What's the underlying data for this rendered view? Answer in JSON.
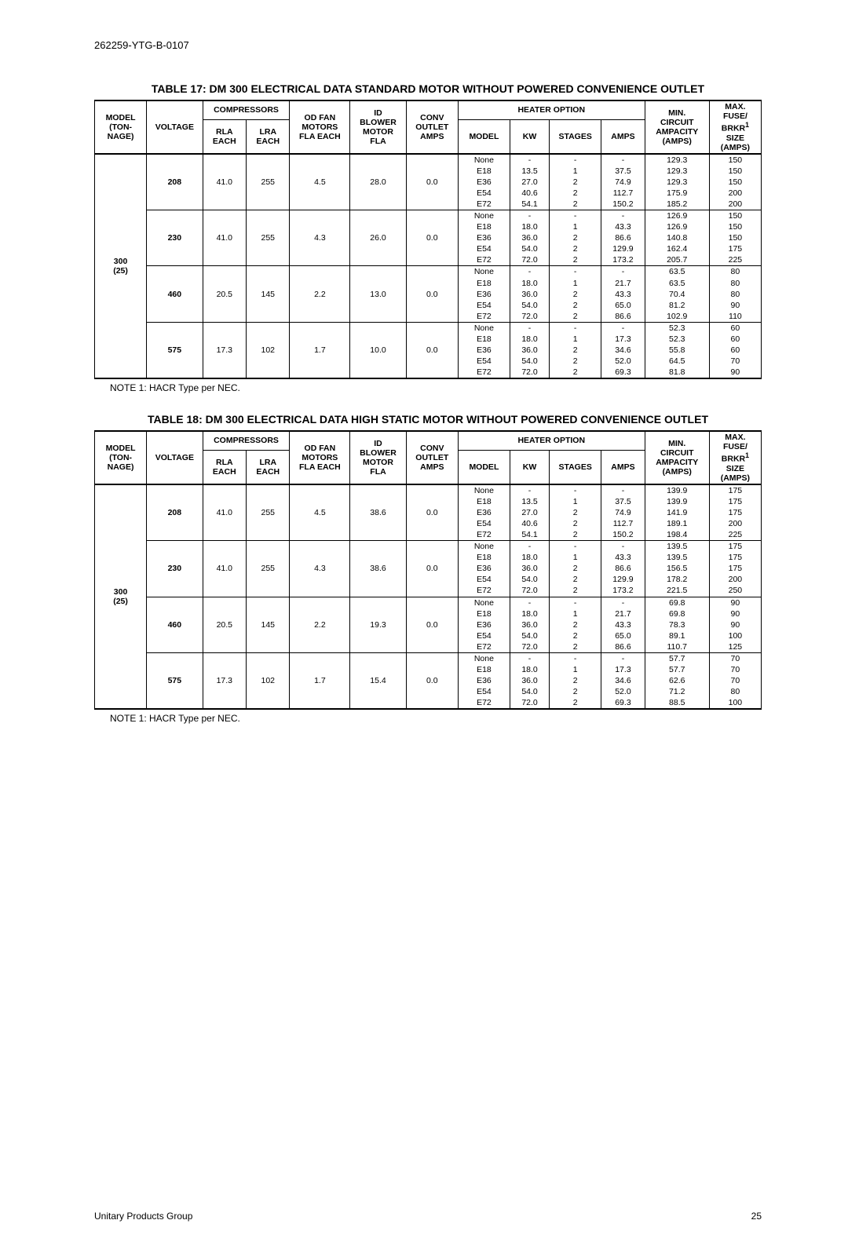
{
  "docId": "262259-YTG-B-0107",
  "footerLeft": "Unitary Products Group",
  "footerRight": "25",
  "note": "NOTE 1: HACR Type per NEC.",
  "headers": {
    "model": "MODEL (TON-NAGE)",
    "voltage": "VOLTAGE",
    "compressors": "COMPRESSORS",
    "rla": "RLA EACH",
    "lra": "LRA EACH",
    "odfan": "OD FAN MOTORS FLA EACH",
    "blower": "ID BLOWER MOTOR FLA",
    "conv": "CONV OUTLET AMPS",
    "heater": "HEATER OPTION",
    "hmodel": "MODEL",
    "kw": "KW",
    "stages": "STAGES",
    "amps": "AMPS",
    "mca": "MIN. CIRCUIT AMPACITY (AMPS)",
    "fuse_top": "MAX.",
    "fuse": "FUSE/ BRKR",
    "fuse_sup": "1",
    "fuse_bot": "SIZE (AMPS)"
  },
  "tables": [
    {
      "title": "TABLE 17:  DM 300 ELECTRICAL DATA STANDARD MOTOR WITHOUT POWERED CONVENIENCE OUTLET",
      "model": "300 (25)",
      "groups": [
        {
          "voltage": "208",
          "rla": "41.0",
          "lra": "255",
          "fan": "4.5",
          "blower": "28.0",
          "conv": "0.0",
          "rows": [
            {
              "m": "None",
              "kw": "-",
              "st": "-",
              "a": "-",
              "mca": "129.3",
              "f": "150"
            },
            {
              "m": "E18",
              "kw": "13.5",
              "st": "1",
              "a": "37.5",
              "mca": "129.3",
              "f": "150"
            },
            {
              "m": "E36",
              "kw": "27.0",
              "st": "2",
              "a": "74.9",
              "mca": "129.3",
              "f": "150"
            },
            {
              "m": "E54",
              "kw": "40.6",
              "st": "2",
              "a": "112.7",
              "mca": "175.9",
              "f": "200"
            },
            {
              "m": "E72",
              "kw": "54.1",
              "st": "2",
              "a": "150.2",
              "mca": "185.2",
              "f": "200"
            }
          ]
        },
        {
          "voltage": "230",
          "rla": "41.0",
          "lra": "255",
          "fan": "4.3",
          "blower": "26.0",
          "conv": "0.0",
          "rows": [
            {
              "m": "None",
              "kw": "-",
              "st": "-",
              "a": "-",
              "mca": "126.9",
              "f": "150"
            },
            {
              "m": "E18",
              "kw": "18.0",
              "st": "1",
              "a": "43.3",
              "mca": "126.9",
              "f": "150"
            },
            {
              "m": "E36",
              "kw": "36.0",
              "st": "2",
              "a": "86.6",
              "mca": "140.8",
              "f": "150"
            },
            {
              "m": "E54",
              "kw": "54.0",
              "st": "2",
              "a": "129.9",
              "mca": "162.4",
              "f": "175"
            },
            {
              "m": "E72",
              "kw": "72.0",
              "st": "2",
              "a": "173.2",
              "mca": "205.7",
              "f": "225"
            }
          ]
        },
        {
          "voltage": "460",
          "rla": "20.5",
          "lra": "145",
          "fan": "2.2",
          "blower": "13.0",
          "conv": "0.0",
          "rows": [
            {
              "m": "None",
              "kw": "-",
              "st": "-",
              "a": "-",
              "mca": "63.5",
              "f": "80"
            },
            {
              "m": "E18",
              "kw": "18.0",
              "st": "1",
              "a": "21.7",
              "mca": "63.5",
              "f": "80"
            },
            {
              "m": "E36",
              "kw": "36.0",
              "st": "2",
              "a": "43.3",
              "mca": "70.4",
              "f": "80"
            },
            {
              "m": "E54",
              "kw": "54.0",
              "st": "2",
              "a": "65.0",
              "mca": "81.2",
              "f": "90"
            },
            {
              "m": "E72",
              "kw": "72.0",
              "st": "2",
              "a": "86.6",
              "mca": "102.9",
              "f": "110"
            }
          ]
        },
        {
          "voltage": "575",
          "rla": "17.3",
          "lra": "102",
          "fan": "1.7",
          "blower": "10.0",
          "conv": "0.0",
          "rows": [
            {
              "m": "None",
              "kw": "-",
              "st": "-",
              "a": "-",
              "mca": "52.3",
              "f": "60"
            },
            {
              "m": "E18",
              "kw": "18.0",
              "st": "1",
              "a": "17.3",
              "mca": "52.3",
              "f": "60"
            },
            {
              "m": "E36",
              "kw": "36.0",
              "st": "2",
              "a": "34.6",
              "mca": "55.8",
              "f": "60"
            },
            {
              "m": "E54",
              "kw": "54.0",
              "st": "2",
              "a": "52.0",
              "mca": "64.5",
              "f": "70"
            },
            {
              "m": "E72",
              "kw": "72.0",
              "st": "2",
              "a": "69.3",
              "mca": "81.8",
              "f": "90"
            }
          ]
        }
      ]
    },
    {
      "title": "TABLE 18:  DM 300 ELECTRICAL DATA HIGH STATIC MOTOR WITHOUT POWERED CONVENIENCE OUTLET",
      "model": "300 (25)",
      "groups": [
        {
          "voltage": "208",
          "rla": "41.0",
          "lra": "255",
          "fan": "4.5",
          "blower": "38.6",
          "conv": "0.0",
          "rows": [
            {
              "m": "None",
              "kw": "-",
              "st": "-",
              "a": "-",
              "mca": "139.9",
              "f": "175"
            },
            {
              "m": "E18",
              "kw": "13.5",
              "st": "1",
              "a": "37.5",
              "mca": "139.9",
              "f": "175"
            },
            {
              "m": "E36",
              "kw": "27.0",
              "st": "2",
              "a": "74.9",
              "mca": "141.9",
              "f": "175"
            },
            {
              "m": "E54",
              "kw": "40.6",
              "st": "2",
              "a": "112.7",
              "mca": "189.1",
              "f": "200"
            },
            {
              "m": "E72",
              "kw": "54.1",
              "st": "2",
              "a": "150.2",
              "mca": "198.4",
              "f": "225"
            }
          ]
        },
        {
          "voltage": "230",
          "rla": "41.0",
          "lra": "255",
          "fan": "4.3",
          "blower": "38.6",
          "conv": "0.0",
          "rows": [
            {
              "m": "None",
              "kw": "-",
              "st": "-",
              "a": "-",
              "mca": "139.5",
              "f": "175"
            },
            {
              "m": "E18",
              "kw": "18.0",
              "st": "1",
              "a": "43.3",
              "mca": "139.5",
              "f": "175"
            },
            {
              "m": "E36",
              "kw": "36.0",
              "st": "2",
              "a": "86.6",
              "mca": "156.5",
              "f": "175"
            },
            {
              "m": "E54",
              "kw": "54.0",
              "st": "2",
              "a": "129.9",
              "mca": "178.2",
              "f": "200"
            },
            {
              "m": "E72",
              "kw": "72.0",
              "st": "2",
              "a": "173.2",
              "mca": "221.5",
              "f": "250"
            }
          ]
        },
        {
          "voltage": "460",
          "rla": "20.5",
          "lra": "145",
          "fan": "2.2",
          "blower": "19.3",
          "conv": "0.0",
          "rows": [
            {
              "m": "None",
              "kw": "-",
              "st": "-",
              "a": "-",
              "mca": "69.8",
              "f": "90"
            },
            {
              "m": "E18",
              "kw": "18.0",
              "st": "1",
              "a": "21.7",
              "mca": "69.8",
              "f": "90"
            },
            {
              "m": "E36",
              "kw": "36.0",
              "st": "2",
              "a": "43.3",
              "mca": "78.3",
              "f": "90"
            },
            {
              "m": "E54",
              "kw": "54.0",
              "st": "2",
              "a": "65.0",
              "mca": "89.1",
              "f": "100"
            },
            {
              "m": "E72",
              "kw": "72.0",
              "st": "2",
              "a": "86.6",
              "mca": "110.7",
              "f": "125"
            }
          ]
        },
        {
          "voltage": "575",
          "rla": "17.3",
          "lra": "102",
          "fan": "1.7",
          "blower": "15.4",
          "conv": "0.0",
          "rows": [
            {
              "m": "None",
              "kw": "-",
              "st": "-",
              "a": "-",
              "mca": "57.7",
              "f": "70"
            },
            {
              "m": "E18",
              "kw": "18.0",
              "st": "1",
              "a": "17.3",
              "mca": "57.7",
              "f": "70"
            },
            {
              "m": "E36",
              "kw": "36.0",
              "st": "2",
              "a": "34.6",
              "mca": "62.6",
              "f": "70"
            },
            {
              "m": "E54",
              "kw": "54.0",
              "st": "2",
              "a": "52.0",
              "mca": "71.2",
              "f": "80"
            },
            {
              "m": "E72",
              "kw": "72.0",
              "st": "2",
              "a": "69.3",
              "mca": "88.5",
              "f": "100"
            }
          ]
        }
      ]
    }
  ]
}
